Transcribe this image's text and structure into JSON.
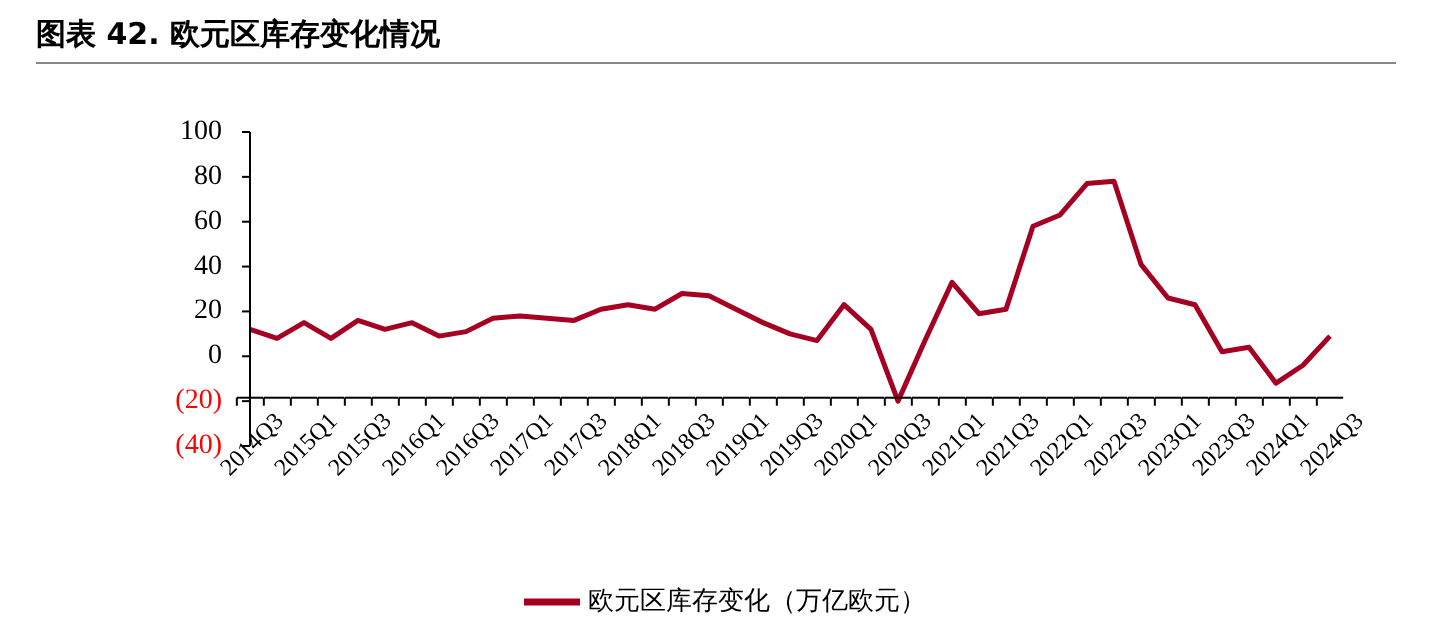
{
  "chart_data": {
    "type": "line",
    "title": "图表 42. 欧元区库存变化情况",
    "categories": [
      "2014Q3",
      null,
      "2015Q1",
      null,
      "2015Q3",
      null,
      "2016Q1",
      null,
      "2016Q3",
      null,
      "2017Q1",
      null,
      "2017Q3",
      null,
      "2018Q1",
      null,
      "2018Q3",
      null,
      "2019Q1",
      null,
      "2019Q3",
      null,
      "2020Q1",
      null,
      "2020Q3",
      null,
      "2021Q1",
      null,
      "2021Q3",
      null,
      "2022Q1",
      null,
      "2022Q3",
      null,
      "2023Q1",
      null,
      "2023Q3",
      null,
      "2024Q1",
      null,
      "2024Q3"
    ],
    "series": [
      {
        "name": "欧元区库存变化（万亿欧元）",
        "color": "#a50021",
        "values": [
          12,
          8,
          15,
          8,
          16,
          12,
          15,
          9,
          11,
          17,
          18,
          17,
          16,
          21,
          23,
          21,
          28,
          27,
          21,
          15,
          10,
          7,
          23,
          12,
          -20,
          7,
          33,
          19,
          21,
          58,
          63,
          77,
          78,
          41,
          26,
          23,
          2,
          4,
          -12,
          -4,
          9
        ]
      }
    ],
    "ylim": [
      -40,
      100
    ],
    "yticks": [
      {
        "value": -40,
        "label": "(40)"
      },
      {
        "value": -20,
        "label": "(20)"
      },
      0,
      20,
      40,
      60,
      80,
      100
    ],
    "grid": false,
    "legend": "bottom",
    "marker": "none",
    "line_style": "solid"
  }
}
